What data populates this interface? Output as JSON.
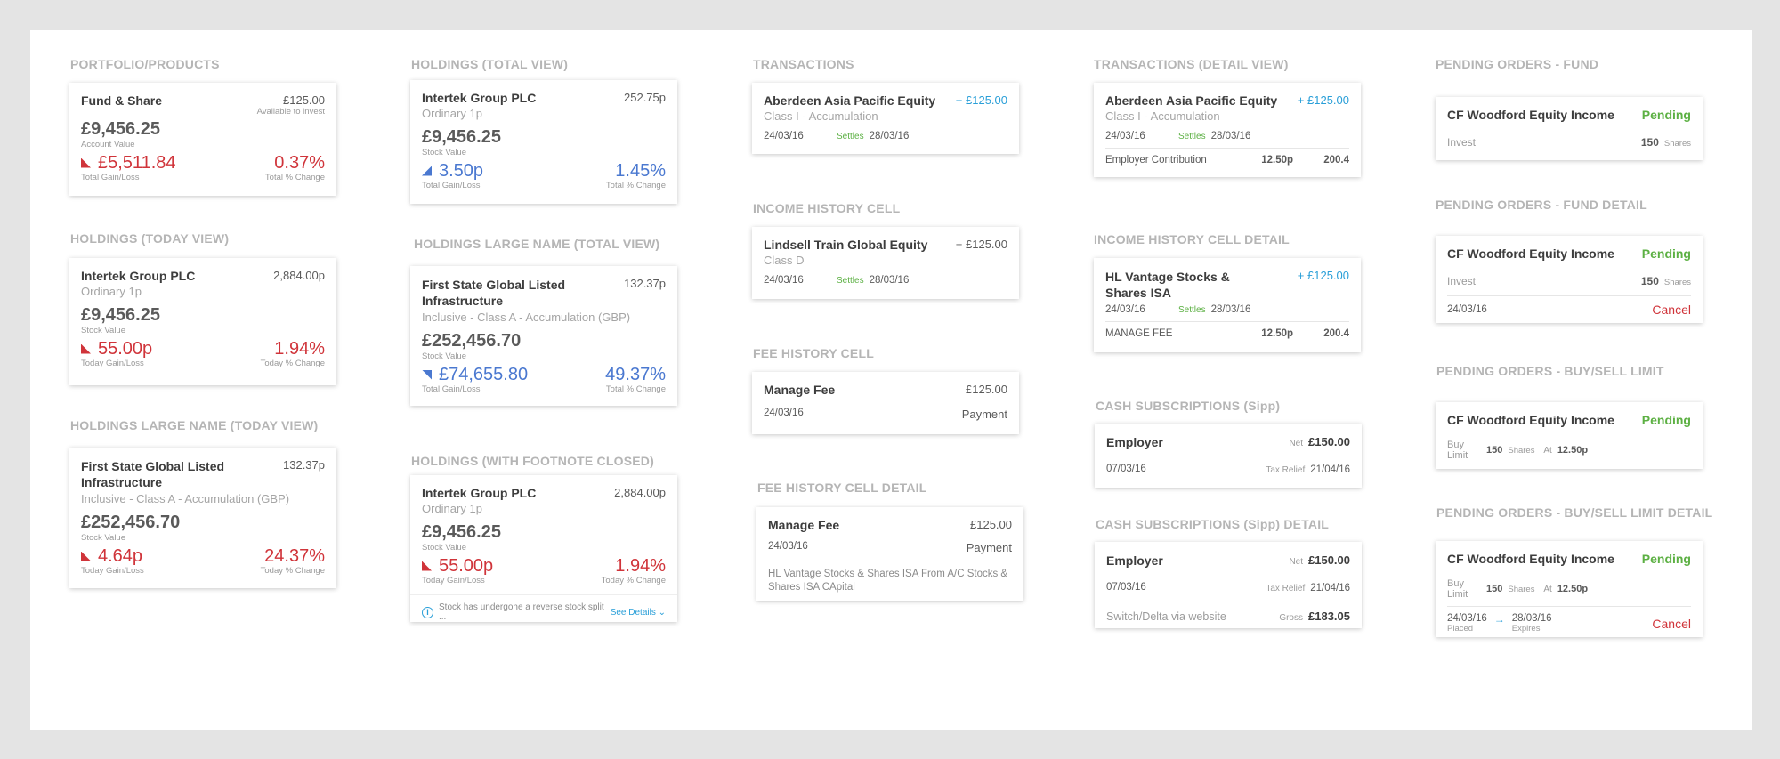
{
  "sections": {
    "portfolio": "PORTFOLIO/PRODUCTS",
    "holdings_today": "HOLDINGS (TODAY VIEW)",
    "holdings_large_today": "HOLDINGS LARGE NAME  (TODAY VIEW)",
    "holdings_total": "HOLDINGS (TOTAL VIEW)",
    "holdings_large_total": "HOLDINGS LARGE NAME  (TOTAL VIEW)",
    "holdings_footnote": "HOLDINGS (WITH FOOTNOTE CLOSED)",
    "transactions": "TRANSACTIONS",
    "income_history": "INCOME HISTORY CELL",
    "fee_history": "FEE HISTORY CELL",
    "fee_history_detail": "FEE HISTORY CELL DETAIL",
    "transactions_detail": "TRANSACTIONS (DETAIL VIEW)",
    "income_history_detail": "INCOME HISTORY CELL DETAIL",
    "cash_subs": "CASH SUBSCRIPTIONS (Sipp)",
    "cash_subs_detail": "CASH SUBSCRIPTIONS (Sipp) DETAIL",
    "pending_fund": "PENDING ORDERS - FUND",
    "pending_fund_detail": "PENDING ORDERS - FUND DETAIL",
    "pending_limit": "PENDING ORDERS - BUY/SELL LIMIT",
    "pending_limit_detail": "PENDING ORDERS - BUY/SELL LIMIT DETAIL"
  },
  "portfolio": {
    "name": "Fund & Share",
    "avail": "£125.00",
    "avail_label": "Available to invest",
    "value": "£9,456.25",
    "value_label": "Account Value",
    "gain": "£5,511.84",
    "gain_label": "Total Gain/Loss",
    "pct": "0.37%",
    "pct_label": "Total % Change"
  },
  "holdings_today": {
    "name": "Intertek Group PLC",
    "price": "2,884.00p",
    "sub": "Ordinary 1p",
    "value": "£9,456.25",
    "value_label": "Stock Value",
    "gain": "55.00p",
    "gain_label": "Today Gain/Loss",
    "pct": "1.94%",
    "pct_label": "Today % Change"
  },
  "holdings_large_today": {
    "name": "First State Global Listed Infrastructure",
    "price": "132.37p",
    "sub": "Inclusive - Class A - Accumulation (GBP)",
    "value": "£252,456.70",
    "value_label": "Stock Value",
    "gain": "4.64p",
    "gain_label": "Today Gain/Loss",
    "pct": "24.37%",
    "pct_label": "Today % Change"
  },
  "holdings_total": {
    "name": "Intertek Group PLC",
    "price": "252.75p",
    "sub": "Ordinary 1p",
    "value": "£9,456.25",
    "value_label": "Stock Value",
    "gain": "3.50p",
    "gain_label": "Total Gain/Loss",
    "pct": "1.45%",
    "pct_label": "Total % Change"
  },
  "holdings_large_total": {
    "name": "First State Global Listed Infrastructure",
    "price": "132.37p",
    "sub": "Inclusive - Class A - Accumulation (GBP)",
    "value": "£252,456.70",
    "value_label": "Stock Value",
    "gain": "£74,655.80",
    "gain_label": "Total Gain/Loss",
    "pct": "49.37%",
    "pct_label": "Total % Change"
  },
  "holdings_footnote": {
    "name": "Intertek Group PLC",
    "price": "2,884.00p",
    "sub": "Ordinary 1p",
    "value": "£9,456.25",
    "value_label": "Stock Value",
    "gain": "55.00p",
    "gain_label": "Today Gain/Loss",
    "pct": "1.94%",
    "pct_label": "Today % Change",
    "note": "Stock has undergone a reverse stock split ...",
    "see": "See Details ⌄",
    "info": "i"
  },
  "transactions": {
    "name": "Aberdeen Asia Pacific Equity",
    "amount": "+ £125.00",
    "sub": "Class I - Accumulation",
    "date": "24/03/16",
    "settles": "Settles",
    "settle_date": "28/03/16"
  },
  "income_history": {
    "name": "Lindsell Train Global Equity",
    "amount": "+ £125.00",
    "sub": "Class D",
    "date": "24/03/16",
    "settles": "Settles",
    "settle_date": "28/03/16"
  },
  "fee_history": {
    "name": "Manage Fee",
    "amount": "£125.00",
    "date": "24/03/16",
    "type": "Payment"
  },
  "fee_history_detail": {
    "name": "Manage Fee",
    "amount": "£125.00",
    "date": "24/03/16",
    "type": "Payment",
    "note": "HL Vantage Stocks & Shares ISA From A/C Stocks & Shares ISA CApital"
  },
  "transactions_detail": {
    "name": "Aberdeen Asia Pacific Equity",
    "amount": "+ £125.00",
    "sub": "Class I - Accumulation",
    "date": "24/03/16",
    "settles": "Settles",
    "settle_date": "28/03/16",
    "line_label": "Employer Contribution",
    "line_price": "12.50p",
    "line_qty": "200.4"
  },
  "income_history_detail": {
    "name": "HL Vantage Stocks & Shares ISA",
    "amount": "+ £125.00",
    "date": "24/03/16",
    "settles": "Settles",
    "settle_date": "28/03/16",
    "line_label": "MANAGE FEE",
    "line_price": "12.50p",
    "line_qty": "200.4"
  },
  "cash_subs": {
    "name": "Employer",
    "net_label": "Net",
    "net": "£150.00",
    "date": "07/03/16",
    "relief_label": "Tax Relief",
    "relief_date": "21/04/16"
  },
  "cash_subs_detail": {
    "name": "Employer",
    "net_label": "Net",
    "net": "£150.00",
    "date": "07/03/16",
    "relief_label": "Tax Relief",
    "relief_date": "21/04/16",
    "method": "Switch/Delta via website",
    "gross_label": "Gross",
    "gross": "£183.05"
  },
  "pending_fund": {
    "name": "CF Woodford Equity Income",
    "status": "Pending",
    "action": "Invest",
    "qty": "150",
    "unit": "Shares"
  },
  "pending_fund_detail": {
    "name": "CF Woodford Equity Income",
    "status": "Pending",
    "action": "Invest",
    "qty": "150",
    "unit": "Shares",
    "date": "24/03/16",
    "cancel": "Cancel"
  },
  "pending_limit": {
    "name": "CF Woodford Equity Income",
    "status": "Pending",
    "action": "Buy Limit",
    "qty": "150",
    "unit": "Shares",
    "at_label": "At",
    "at": "12.50p"
  },
  "pending_limit_detail": {
    "name": "CF Woodford Equity Income",
    "status": "Pending",
    "action": "Buy Limit",
    "qty": "150",
    "unit": "Shares",
    "at_label": "At",
    "at": "12.50p",
    "placed": "24/03/16",
    "placed_label": "Placed",
    "arrow": "→",
    "expires": "28/03/16",
    "expires_label": "Expires",
    "cancel": "Cancel"
  }
}
